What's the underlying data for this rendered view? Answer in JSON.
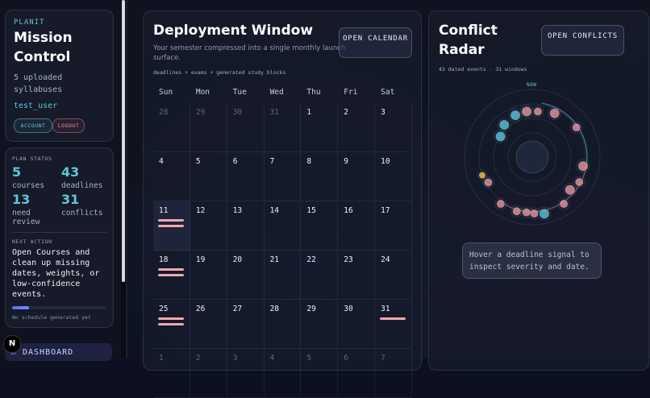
{
  "sidebar": {
    "brand_small": "PLANIT",
    "brand_title": "Mission Control",
    "uploaded": "5 uploaded syllabuses",
    "username": "test_user",
    "account_label": "ACCOUNT",
    "logout_label": "LOGOUT",
    "plan_status_label": "PLAN STATUS",
    "stats": [
      {
        "value": "5",
        "label": "courses"
      },
      {
        "value": "43",
        "label": "deadlines"
      },
      {
        "value": "13",
        "label": "need review"
      },
      {
        "value": "31",
        "label": "conflicts"
      }
    ],
    "next_action_label": "NEXT ACTION",
    "next_action_text": "Open Courses and clean up missing dates, weights, or low-confidence events.",
    "schedule_progress": 0.18,
    "no_schedule": "No schedule generated yet",
    "dashboard_label": "DASHBOARD",
    "badge": "N"
  },
  "deploy": {
    "title": "Deployment Window",
    "subtitle": "Your semester compressed into a single monthly launch surface.",
    "caption": "deadlines + exams + generated study blocks",
    "button": "OPEN CALENDAR",
    "weekdays": [
      "Sun",
      "Mon",
      "Tue",
      "Wed",
      "Thu",
      "Fri",
      "Sat"
    ],
    "weeks": [
      [
        "28",
        "29",
        "30",
        "31",
        "1",
        "2",
        "3"
      ],
      [
        "4",
        "5",
        "6",
        "7",
        "8",
        "9",
        "10"
      ],
      [
        "11",
        "12",
        "13",
        "14",
        "15",
        "16",
        "17"
      ],
      [
        "18",
        "19",
        "20",
        "21",
        "22",
        "23",
        "24"
      ],
      [
        "25",
        "26",
        "27",
        "28",
        "29",
        "30",
        "31"
      ],
      [
        "1",
        "2",
        "3",
        "4",
        "5",
        "6",
        "7"
      ]
    ]
  },
  "radar": {
    "title": "Conflict Radar",
    "button": "OPEN CONFLICTS",
    "meta": "43 dated events · 31 windows",
    "now_label": "NOW",
    "tooltip": "Hover a deadline signal to inspect severity and date.",
    "colors": {
      "teal": "#5fc6d8",
      "pink": "#e29aa2",
      "yellow": "#f2c94c"
    }
  }
}
